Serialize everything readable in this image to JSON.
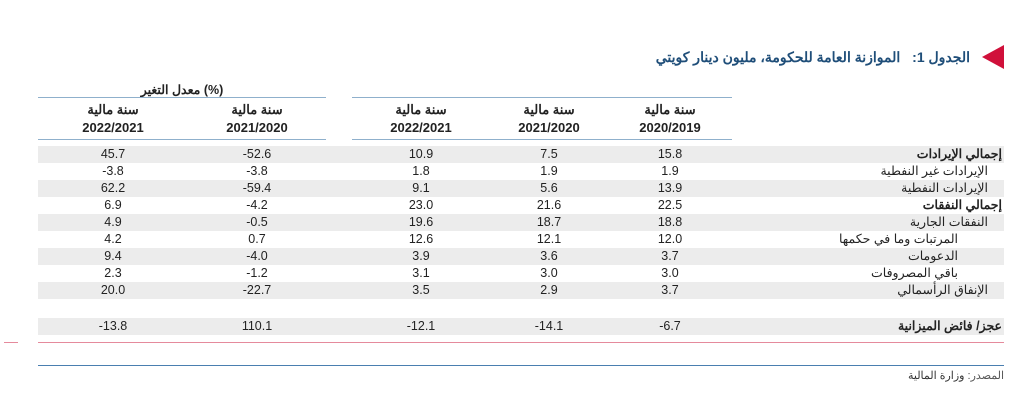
{
  "title": {
    "label": "الجدول 1:",
    "text": "الموازنة العامة للحكومة، مليون دينار كويتي"
  },
  "change_header": "معدل التغير (%)",
  "columns": [
    {
      "l1": "سنة مالية",
      "l2": "2022/2021"
    },
    {
      "l1": "سنة مالية",
      "l2": "2021/2020"
    },
    {
      "l1": "سنة مالية",
      "l2": "2022/2021"
    },
    {
      "l1": "سنة مالية",
      "l2": "2021/2020"
    },
    {
      "l1": "سنة مالية",
      "l2": "2020/2019"
    }
  ],
  "rows": [
    {
      "label": "إجمالي الإيرادات",
      "bold": true,
      "values": [
        "45.7",
        "-52.6",
        "10.9",
        "7.5",
        "15.8"
      ]
    },
    {
      "label": "الإيرادات غير النفطية",
      "bold": false,
      "values": [
        "-3.8",
        "-3.8",
        "1.8",
        "1.9",
        "1.9"
      ]
    },
    {
      "label": "الإيرادات النفطية",
      "bold": false,
      "values": [
        "62.2",
        "-59.4",
        "9.1",
        "5.6",
        "13.9"
      ]
    },
    {
      "label": "إجمالي النفقات",
      "bold": true,
      "values": [
        "6.9",
        "-4.2",
        "23.0",
        "21.6",
        "22.5"
      ]
    },
    {
      "label": "النفقات الجارية",
      "bold": false,
      "values": [
        "4.9",
        "-0.5",
        "19.6",
        "18.7",
        "18.8"
      ]
    },
    {
      "label": "المرتبات وما في حكمها",
      "bold": false,
      "values": [
        "4.2",
        "0.7",
        "12.6",
        "12.1",
        "12.0"
      ]
    },
    {
      "label": "الدعومات",
      "bold": false,
      "values": [
        "9.4",
        "-4.0",
        "3.9",
        "3.6",
        "3.7"
      ]
    },
    {
      "label": "باقي المصروفات",
      "bold": false,
      "values": [
        "2.3",
        "-1.2",
        "3.1",
        "3.0",
        "3.0"
      ]
    },
    {
      "label": "الإنفاق الرأسمالي",
      "bold": false,
      "values": [
        "20.0",
        "-22.7",
        "3.5",
        "2.9",
        "3.7"
      ]
    }
  ],
  "deficit_row": {
    "label": "عجز/ فائض الميزانية",
    "bold": true,
    "values": [
      "-13.8",
      "110.1",
      "-12.1",
      "-14.1",
      "-6.7"
    ]
  },
  "source": {
    "label": "المصدر:",
    "text": "وزارة المالية"
  },
  "colors": {
    "title": "#1f4e79",
    "marker": "#d0103a",
    "shade": "#ececec",
    "rule_blue": "#4a7fb0",
    "rule_pink": "#e58a9c"
  }
}
